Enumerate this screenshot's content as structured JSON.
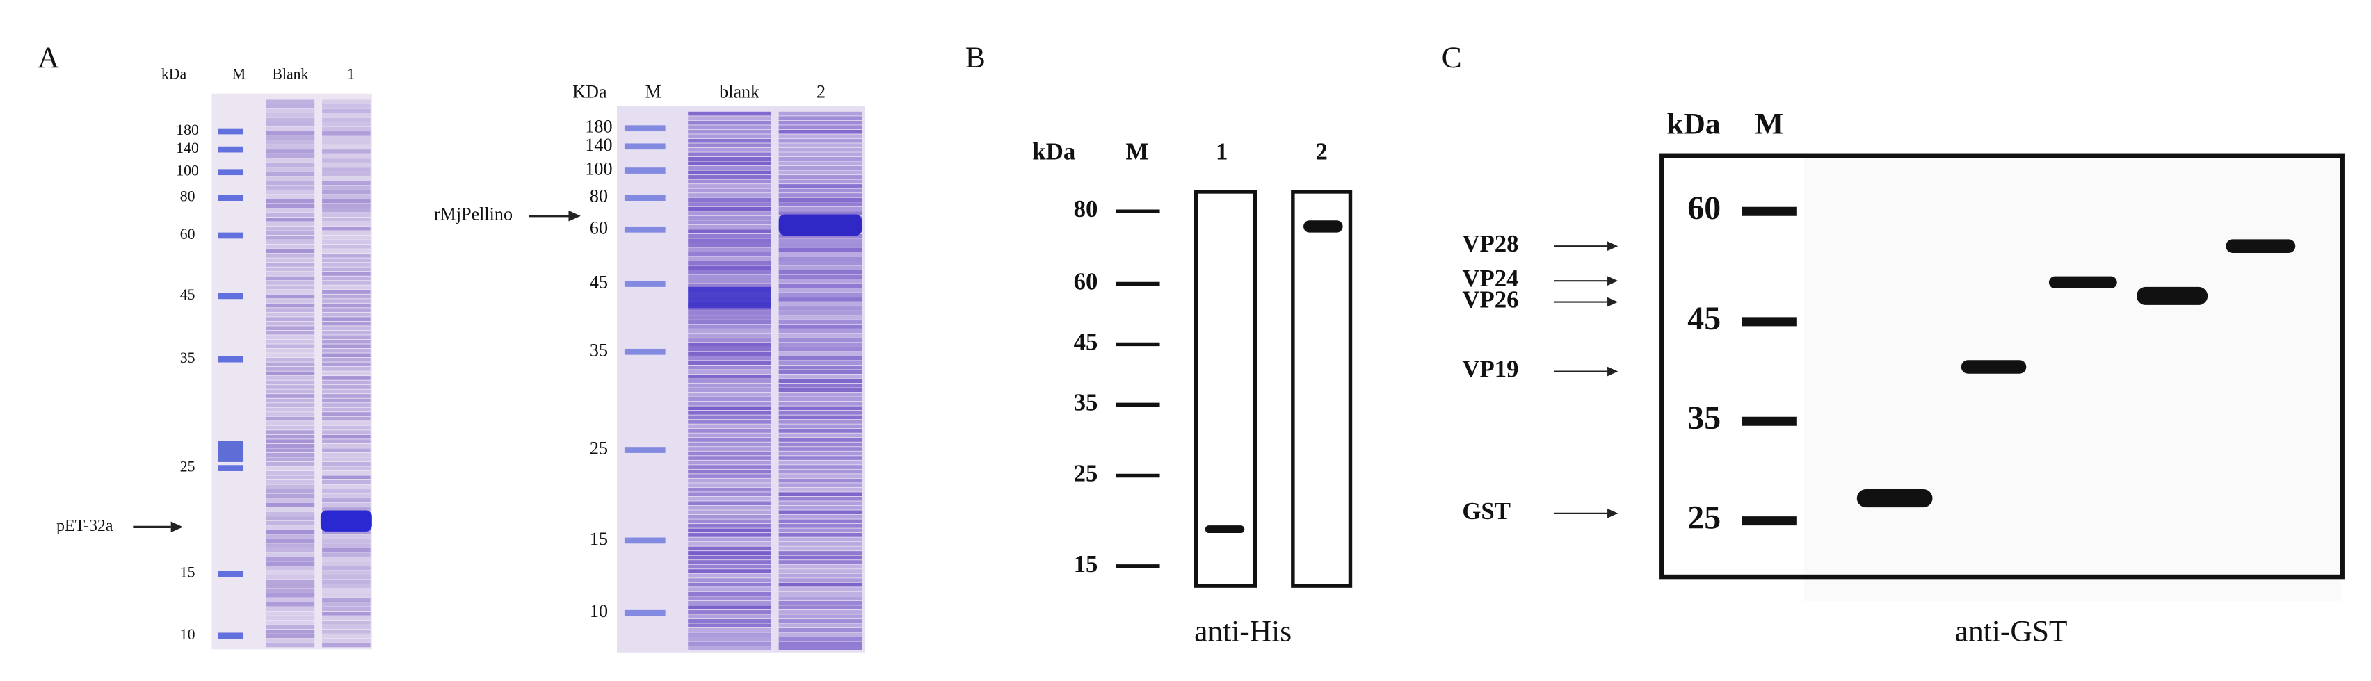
{
  "panels": [
    {
      "label": "A",
      "gels": [
        {
          "unit": "kDa",
          "lanes": [
            "M",
            "Blank",
            "1"
          ],
          "markers": [
            180,
            140,
            100,
            80,
            60,
            45,
            35,
            25,
            15,
            10
          ],
          "arrow_label": "pET-32a"
        },
        {
          "unit": "KDa",
          "lanes": [
            "M",
            "blank",
            "2"
          ],
          "markers": [
            180,
            140,
            100,
            80,
            60,
            45,
            35,
            25,
            15,
            10
          ],
          "arrow_label": "rMjPellino"
        }
      ]
    },
    {
      "label": "B",
      "unit": "kDa",
      "lanes": [
        "M",
        "1",
        "2"
      ],
      "markers": [
        80,
        60,
        45,
        35,
        25,
        15
      ],
      "caption": "anti-His"
    },
    {
      "label": "C",
      "unit": "kDa",
      "lanes": [
        "M"
      ],
      "markers": [
        60,
        45,
        35,
        25
      ],
      "arrows": [
        "VP28",
        "VP24",
        "VP26",
        "VP19",
        "GST"
      ],
      "caption": "anti-GST"
    }
  ]
}
